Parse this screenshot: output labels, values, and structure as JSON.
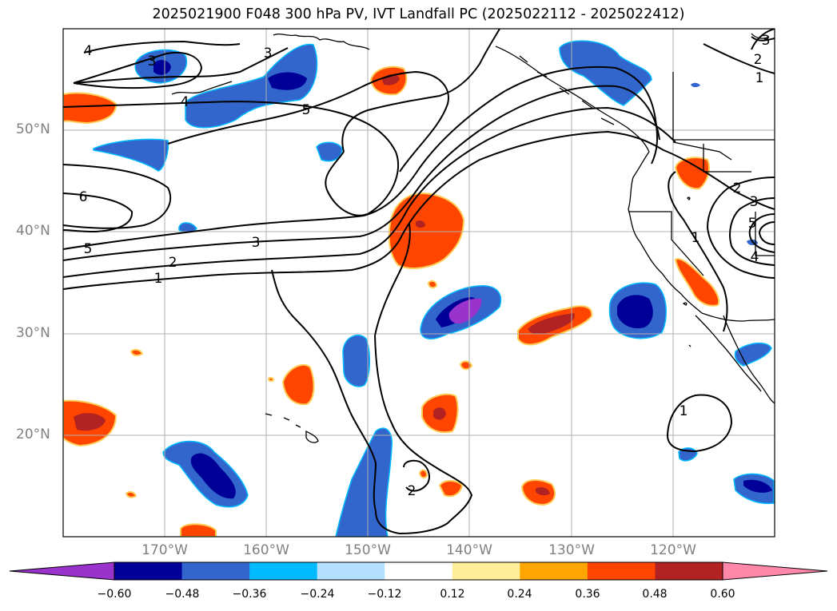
{
  "title": "2025021900 F048 300 hPa PV, IVT Landfall PC (2025022112 - 2025022412)",
  "lat_labels": [
    "50°N",
    "40°N",
    "30°N",
    "20°N"
  ],
  "lon_labels": [
    "170°W",
    "160°W",
    "150°W",
    "140°W",
    "130°W",
    "120°W"
  ],
  "colorbar": {
    "ticks": [
      "−0.60",
      "−0.48",
      "−0.36",
      "−0.24",
      "−0.12",
      "0.12",
      "0.24",
      "0.36",
      "0.48",
      "0.60"
    ],
    "colors": [
      "#9933cc",
      "#000099",
      "#3366cc",
      "#00bbff",
      "#b3e0ff",
      "#ffffff",
      "#ffee99",
      "#ffa500",
      "#ff4500",
      "#b22222",
      "#ff88aa"
    ]
  },
  "contour_labels": {
    "l4_nw": "4",
    "l3_nw": "3",
    "l4_w": "4",
    "l3_n": "3",
    "l5_mid": "5",
    "l6": "6",
    "l5_w": "5",
    "l3_w": "3",
    "l2_w": "2",
    "l1_w": "1",
    "l2_ne": "2",
    "l1_ne": "1",
    "l3_ne_top": "3",
    "l2_e": "2",
    "l3_e": "3",
    "l5_e": "5",
    "l4_e": "4",
    "l1_e": "1",
    "l1_se": "1",
    "l2_s": "2"
  }
}
